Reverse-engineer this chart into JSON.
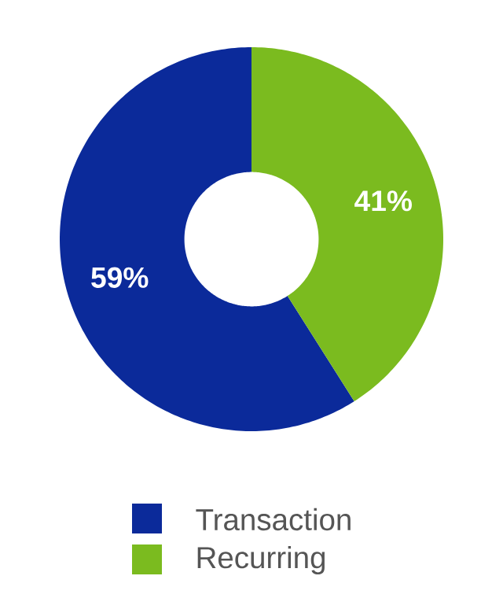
{
  "chart_data": {
    "type": "donut",
    "categories": [
      "Transaction",
      "Recurring"
    ],
    "values": [
      59,
      41
    ],
    "colors": [
      "#0b2a9a",
      "#7bbb1f"
    ],
    "value_labels": [
      "59%",
      "41%"
    ],
    "legend": "bottom"
  }
}
